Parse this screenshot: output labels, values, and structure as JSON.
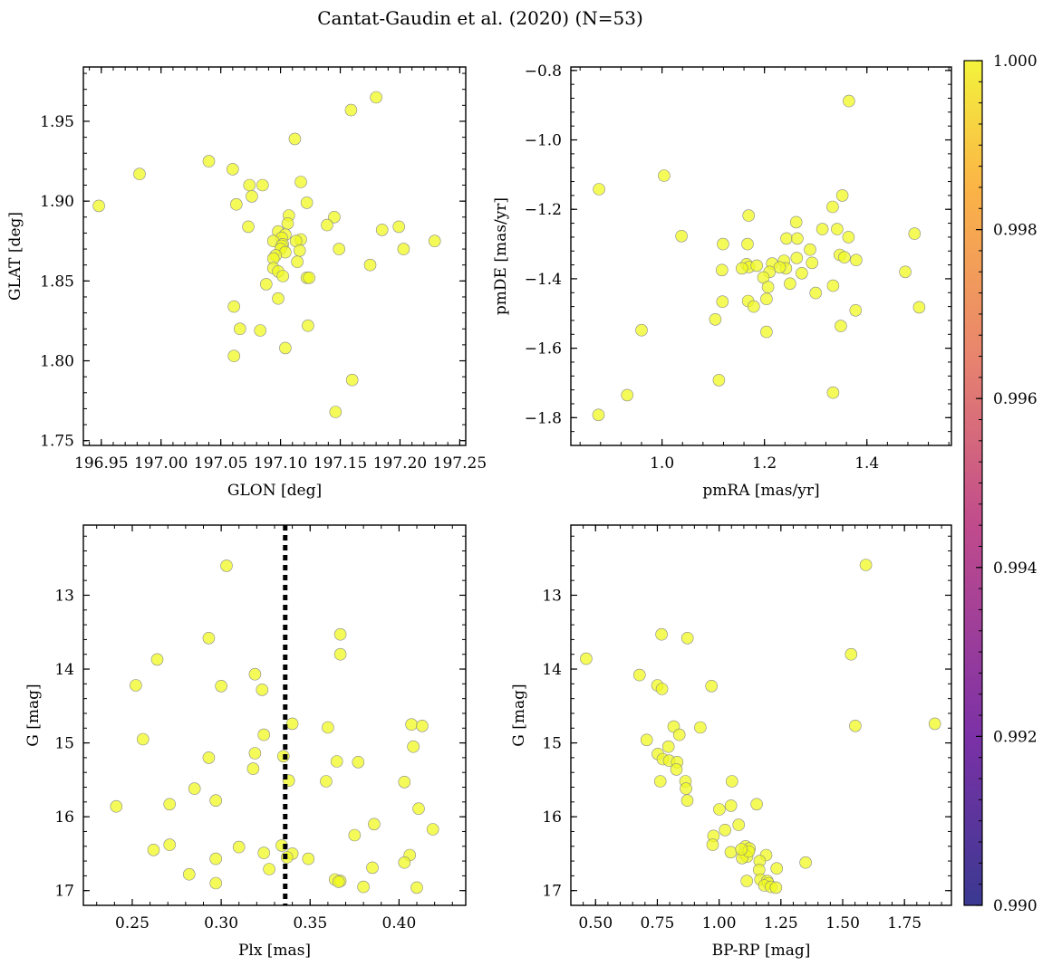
{
  "title": "Cantat-Gaudin et al. (2020) (N=53)",
  "chart_data": [
    {
      "type": "scatter",
      "panel": "top-left",
      "xlabel": "GLON [deg]",
      "ylabel": "GLAT [deg]",
      "xlim": [
        196.935,
        197.255
      ],
      "ylim": [
        1.747,
        1.984
      ],
      "xticks": [
        "196.95",
        "197.00",
        "197.05",
        "197.10",
        "197.15",
        "197.20",
        "197.25"
      ],
      "yticks": [
        "1.75",
        "1.80",
        "1.85",
        "1.90",
        "1.95"
      ],
      "points": [
        [
          197.18,
          1.965
        ],
        [
          197.159,
          1.957
        ],
        [
          197.112,
          1.939
        ],
        [
          197.04,
          1.925
        ],
        [
          197.06,
          1.92
        ],
        [
          196.982,
          1.917
        ],
        [
          197.117,
          1.912
        ],
        [
          197.074,
          1.91
        ],
        [
          197.085,
          1.91
        ],
        [
          197.076,
          1.903
        ],
        [
          197.122,
          1.899
        ],
        [
          197.063,
          1.898
        ],
        [
          196.948,
          1.897
        ],
        [
          197.107,
          1.891
        ],
        [
          197.145,
          1.89
        ],
        [
          197.106,
          1.886
        ],
        [
          197.139,
          1.885
        ],
        [
          197.199,
          1.884
        ],
        [
          197.073,
          1.884
        ],
        [
          197.185,
          1.882
        ],
        [
          197.098,
          1.881
        ],
        [
          197.104,
          1.879
        ],
        [
          197.101,
          1.877
        ],
        [
          197.117,
          1.876
        ],
        [
          197.094,
          1.875
        ],
        [
          197.113,
          1.875
        ],
        [
          197.229,
          1.875
        ],
        [
          197.102,
          1.873
        ],
        [
          197.101,
          1.872
        ],
        [
          197.1,
          1.87
        ],
        [
          197.149,
          1.87
        ],
        [
          197.203,
          1.87
        ],
        [
          197.104,
          1.868
        ],
        [
          197.116,
          1.869
        ],
        [
          197.096,
          1.866
        ],
        [
          197.094,
          1.864
        ],
        [
          197.114,
          1.862
        ],
        [
          197.175,
          1.86
        ],
        [
          197.094,
          1.858
        ],
        [
          197.098,
          1.856
        ],
        [
          197.102,
          1.853
        ],
        [
          197.122,
          1.852
        ],
        [
          197.088,
          1.848
        ],
        [
          197.098,
          1.839
        ],
        [
          197.061,
          1.834
        ],
        [
          197.066,
          1.82
        ],
        [
          197.083,
          1.819
        ],
        [
          197.123,
          1.822
        ],
        [
          197.104,
          1.808
        ],
        [
          197.061,
          1.803
        ],
        [
          197.16,
          1.788
        ],
        [
          197.146,
          1.768
        ],
        [
          197.124,
          1.852
        ]
      ]
    },
    {
      "type": "scatter",
      "panel": "top-right",
      "xlabel": "pmRA [mas/yr]",
      "ylabel": "pmDE [mas/yr]",
      "xlim": [
        0.822,
        1.565
      ],
      "ylim": [
        -1.88,
        -0.79
      ],
      "xticks": [
        "1.0",
        "1.2",
        "1.4"
      ],
      "yticks": [
        "−0.8",
        "−1.0",
        "−1.2",
        "−1.4",
        "−1.6",
        "−1.8"
      ],
      "points": [
        [
          1.365,
          -0.888
        ],
        [
          1.004,
          -1.103
        ],
        [
          0.877,
          -1.142
        ],
        [
          1.352,
          -1.16
        ],
        [
          1.333,
          -1.193
        ],
        [
          1.169,
          -1.218
        ],
        [
          1.262,
          -1.237
        ],
        [
          1.313,
          -1.257
        ],
        [
          1.342,
          -1.257
        ],
        [
          1.038,
          -1.277
        ],
        [
          1.493,
          -1.27
        ],
        [
          1.364,
          -1.28
        ],
        [
          1.243,
          -1.284
        ],
        [
          1.264,
          -1.284
        ],
        [
          1.119,
          -1.3
        ],
        [
          1.167,
          -1.3
        ],
        [
          1.289,
          -1.316
        ],
        [
          1.347,
          -1.331
        ],
        [
          1.356,
          -1.338
        ],
        [
          1.263,
          -1.34
        ],
        [
          1.238,
          -1.348
        ],
        [
          1.379,
          -1.346
        ],
        [
          1.293,
          -1.354
        ],
        [
          1.215,
          -1.356
        ],
        [
          1.165,
          -1.358
        ],
        [
          1.17,
          -1.366
        ],
        [
          1.156,
          -1.37
        ],
        [
          1.242,
          -1.37
        ],
        [
          1.273,
          -1.384
        ],
        [
          1.117,
          -1.375
        ],
        [
          1.21,
          -1.38
        ],
        [
          1.475,
          -1.38
        ],
        [
          1.198,
          -1.396
        ],
        [
          1.25,
          -1.414
        ],
        [
          1.207,
          -1.424
        ],
        [
          1.334,
          -1.42
        ],
        [
          1.3,
          -1.441
        ],
        [
          1.204,
          -1.458
        ],
        [
          1.118,
          -1.466
        ],
        [
          1.168,
          -1.464
        ],
        [
          1.179,
          -1.48
        ],
        [
          1.502,
          -1.482
        ],
        [
          1.378,
          -1.491
        ],
        [
          1.104,
          -1.517
        ],
        [
          1.349,
          -1.536
        ],
        [
          0.96,
          -1.548
        ],
        [
          1.204,
          -1.553
        ],
        [
          1.111,
          -1.692
        ],
        [
          1.334,
          -1.728
        ],
        [
          0.932,
          -1.735
        ],
        [
          0.876,
          -1.792
        ],
        [
          1.23,
          -1.367
        ],
        [
          1.185,
          -1.362
        ]
      ]
    },
    {
      "type": "scatter",
      "panel": "bottom-left",
      "xlabel": "Plx [mas]",
      "ylabel": "G [mag]",
      "xlim": [
        0.2225,
        0.4375
      ],
      "ylim": [
        17.2,
        12.05
      ],
      "xticks": [
        "0.25",
        "0.30",
        "0.35",
        "0.40"
      ],
      "yticks": [
        "13",
        "14",
        "15",
        "16",
        "17"
      ],
      "vline": 0.336,
      "points": [
        [
          0.303,
          12.6
        ],
        [
          0.293,
          13.58
        ],
        [
          0.367,
          13.53
        ],
        [
          0.367,
          13.8
        ],
        [
          0.264,
          13.87
        ],
        [
          0.319,
          14.07
        ],
        [
          0.252,
          14.22
        ],
        [
          0.3,
          14.23
        ],
        [
          0.323,
          14.28
        ],
        [
          0.34,
          14.74
        ],
        [
          0.36,
          14.79
        ],
        [
          0.407,
          14.75
        ],
        [
          0.413,
          14.77
        ],
        [
          0.324,
          14.89
        ],
        [
          0.256,
          14.95
        ],
        [
          0.408,
          15.05
        ],
        [
          0.319,
          15.14
        ],
        [
          0.293,
          15.2
        ],
        [
          0.335,
          15.18
        ],
        [
          0.365,
          15.25
        ],
        [
          0.377,
          15.26
        ],
        [
          0.318,
          15.35
        ],
        [
          0.338,
          15.51
        ],
        [
          0.359,
          15.52
        ],
        [
          0.403,
          15.53
        ],
        [
          0.285,
          15.62
        ],
        [
          0.297,
          15.78
        ],
        [
          0.271,
          15.83
        ],
        [
          0.241,
          15.86
        ],
        [
          0.411,
          15.89
        ],
        [
          0.386,
          16.1
        ],
        [
          0.419,
          16.17
        ],
        [
          0.375,
          16.25
        ],
        [
          0.271,
          16.38
        ],
        [
          0.31,
          16.41
        ],
        [
          0.334,
          16.39
        ],
        [
          0.262,
          16.45
        ],
        [
          0.324,
          16.49
        ],
        [
          0.34,
          16.5
        ],
        [
          0.337,
          16.55
        ],
        [
          0.406,
          16.52
        ],
        [
          0.297,
          16.57
        ],
        [
          0.349,
          16.57
        ],
        [
          0.403,
          16.62
        ],
        [
          0.327,
          16.71
        ],
        [
          0.385,
          16.69
        ],
        [
          0.282,
          16.78
        ],
        [
          0.364,
          16.85
        ],
        [
          0.367,
          16.87
        ],
        [
          0.366,
          16.88
        ],
        [
          0.297,
          16.9
        ],
        [
          0.38,
          16.95
        ],
        [
          0.41,
          16.96
        ]
      ]
    },
    {
      "type": "scatter",
      "panel": "bottom-right",
      "xlabel": "BP-RP [mag]",
      "ylabel": "G [mag]",
      "xlim": [
        0.4,
        1.94
      ],
      "ylim": [
        17.2,
        12.05
      ],
      "xticks": [
        "0.50",
        "0.75",
        "1.00",
        "1.25",
        "1.50",
        "1.75"
      ],
      "yticks": [
        "13",
        "14",
        "15",
        "16",
        "17"
      ],
      "points": [
        [
          1.594,
          12.59
        ],
        [
          0.767,
          13.53
        ],
        [
          0.872,
          13.58
        ],
        [
          1.534,
          13.8
        ],
        [
          0.462,
          13.86
        ],
        [
          0.678,
          14.08
        ],
        [
          0.75,
          14.22
        ],
        [
          0.769,
          14.27
        ],
        [
          0.969,
          14.23
        ],
        [
          0.816,
          14.78
        ],
        [
          0.924,
          14.79
        ],
        [
          1.551,
          14.77
        ],
        [
          1.873,
          14.74
        ],
        [
          0.707,
          14.96
        ],
        [
          0.839,
          14.89
        ],
        [
          0.795,
          15.05
        ],
        [
          0.752,
          15.15
        ],
        [
          0.772,
          15.22
        ],
        [
          0.798,
          15.24
        ],
        [
          0.83,
          15.26
        ],
        [
          0.827,
          15.36
        ],
        [
          0.762,
          15.52
        ],
        [
          0.864,
          15.52
        ],
        [
          1.052,
          15.52
        ],
        [
          0.866,
          15.62
        ],
        [
          0.871,
          15.78
        ],
        [
          1.048,
          15.85
        ],
        [
          1.152,
          15.83
        ],
        [
          1.001,
          15.9
        ],
        [
          1.079,
          16.11
        ],
        [
          1.024,
          16.18
        ],
        [
          0.977,
          16.26
        ],
        [
          1.107,
          16.4
        ],
        [
          0.974,
          16.38
        ],
        [
          1.123,
          16.43
        ],
        [
          1.047,
          16.48
        ],
        [
          1.101,
          16.5
        ],
        [
          1.19,
          16.52
        ],
        [
          1.113,
          16.54
        ],
        [
          1.093,
          16.56
        ],
        [
          1.164,
          16.6
        ],
        [
          1.35,
          16.62
        ],
        [
          1.233,
          16.7
        ],
        [
          1.162,
          16.72
        ],
        [
          1.112,
          16.87
        ],
        [
          1.167,
          16.85
        ],
        [
          1.195,
          16.87
        ],
        [
          1.199,
          16.9
        ],
        [
          1.183,
          16.93
        ],
        [
          1.21,
          16.95
        ],
        [
          1.23,
          16.96
        ],
        [
          1.12,
          16.47
        ],
        [
          1.09,
          16.44
        ]
      ]
    }
  ],
  "colorbar": {
    "min": 0.99,
    "max": 1.0,
    "ticks": [
      "0.990",
      "0.992",
      "0.994",
      "0.996",
      "0.998",
      "1.000"
    ],
    "colors": [
      "#3a3991",
      "#7b31a6",
      "#c04b8c",
      "#e8846e",
      "#fbb446",
      "#f3f33c"
    ]
  }
}
